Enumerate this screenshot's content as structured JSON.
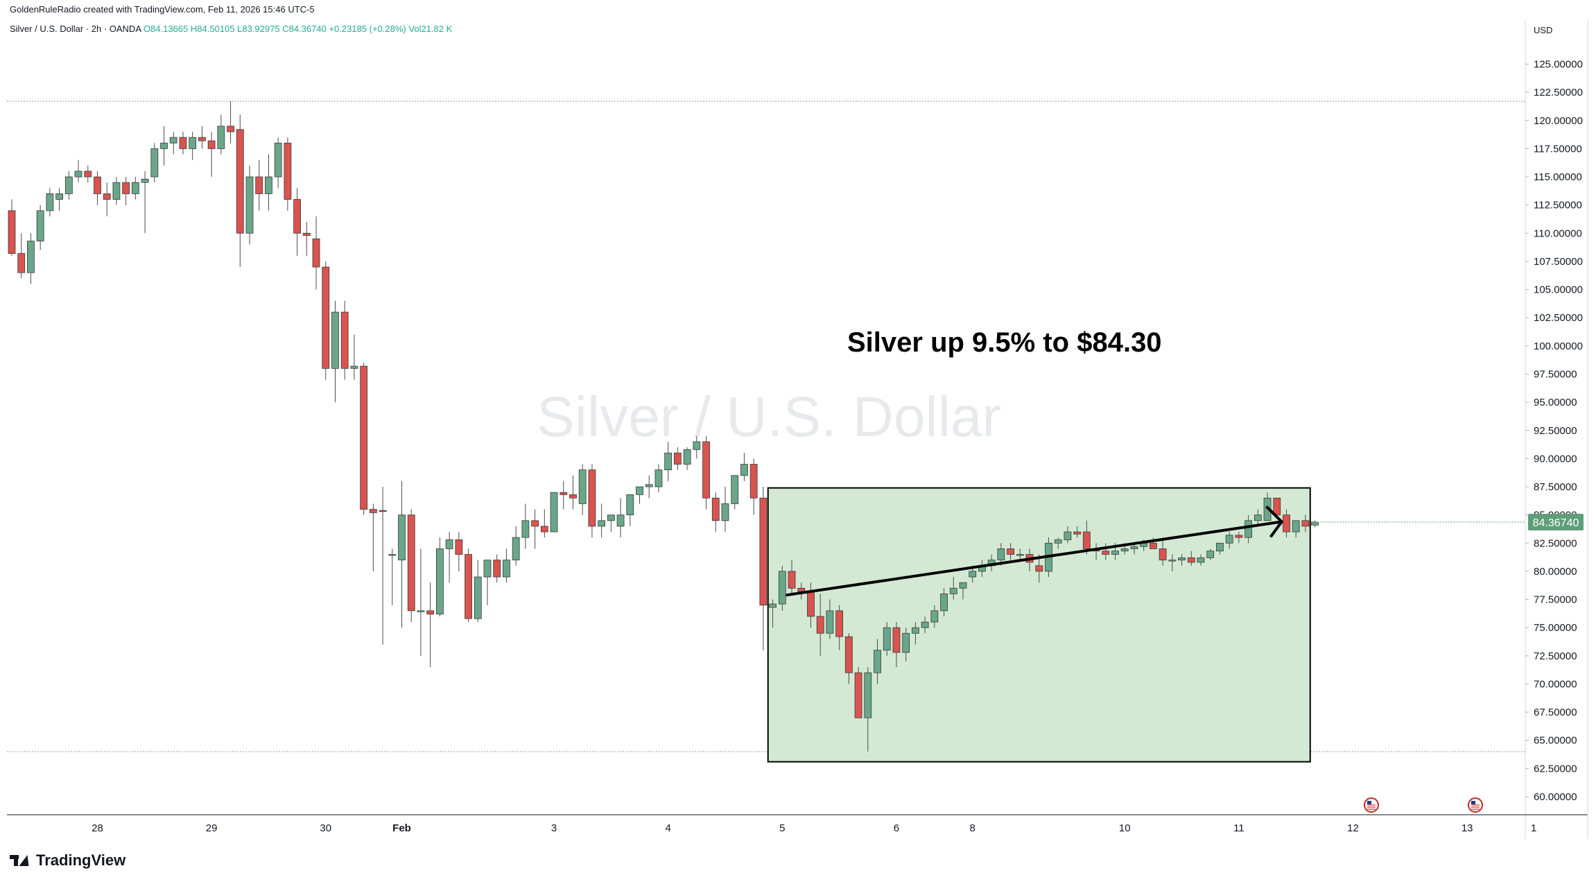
{
  "header": {
    "credit": "GoldenRuleRadio created with TradingView.com, Feb 11, 2026 15:46 UTC-5",
    "symbol": "Silver / U.S. Dollar · 2h · OANDA",
    "open": "O84.13665",
    "high": "H84.50105",
    "low": "L83.92975",
    "close": "C84.36740",
    "change": "+0.23185 (+0.28%)",
    "volume": "Vol21.82 K"
  },
  "watermark": "Silver / U.S. Dollar",
  "annotation": "Silver up 9.5% to $84.30",
  "footer": {
    "logo_text": "TradingView"
  },
  "colors": {
    "up": "#6aa68a",
    "down": "#d9534f",
    "box_fill": "#d4e9d3",
    "price_tag": "#5e9e78"
  },
  "chart_data": {
    "type": "candlestick",
    "currency": "USD",
    "ylim": [
      60,
      127
    ],
    "y_ticks": [
      "125.00000",
      "122.50000",
      "120.00000",
      "117.50000",
      "115.00000",
      "112.50000",
      "110.00000",
      "107.50000",
      "105.00000",
      "102.50000",
      "100.00000",
      "97.50000",
      "95.00000",
      "92.50000",
      "90.00000",
      "87.50000",
      "85.00000",
      "82.50000",
      "80.00000",
      "77.50000",
      "75.00000",
      "72.50000",
      "70.00000",
      "67.50000",
      "65.00000",
      "62.50000",
      "60.00000"
    ],
    "x_ticks": [
      {
        "label": "28",
        "bar": 9
      },
      {
        "label": "29",
        "bar": 21
      },
      {
        "label": "30",
        "bar": 33
      },
      {
        "label": "Feb",
        "bar": 41
      },
      {
        "label": "3",
        "bar": 57
      },
      {
        "label": "4",
        "bar": 69
      },
      {
        "label": "5",
        "bar": 81
      },
      {
        "label": "6",
        "bar": 93
      },
      {
        "label": "8",
        "bar": 101
      },
      {
        "label": "10",
        "bar": 117
      },
      {
        "label": "11",
        "bar": 129
      },
      {
        "label": "12",
        "bar": 141
      },
      {
        "label": "13",
        "bar": 153
      },
      {
        "label": "1",
        "bar": 160
      }
    ],
    "last_price": "84.36740",
    "last_price_value": 84.3674,
    "horizontal_lines": [
      121.7,
      64.0
    ],
    "highlight_box": {
      "bar_from": 79.5,
      "bar_to": 136.5,
      "y_from": 63.1,
      "y_to": 87.4
    },
    "trend_line": {
      "bar_from": 81.5,
      "y_from": 77.9,
      "bar_to": 133.5,
      "y_to": 84.4
    },
    "ohlc": [
      [
        112.0,
        113.0,
        108.0,
        108.2
      ],
      [
        108.2,
        110.0,
        106.0,
        106.5
      ],
      [
        106.5,
        110.0,
        105.5,
        109.3
      ],
      [
        109.3,
        112.5,
        108.5,
        112.0
      ],
      [
        112.0,
        114.0,
        111.5,
        113.5
      ],
      [
        113.0,
        114.0,
        112.0,
        113.5
      ],
      [
        113.5,
        115.5,
        113.0,
        115.0
      ],
      [
        115.0,
        116.5,
        114.5,
        115.5
      ],
      [
        115.5,
        116.0,
        114.5,
        115.0
      ],
      [
        115.0,
        115.5,
        112.5,
        113.5
      ],
      [
        113.5,
        114.5,
        111.5,
        113.0
      ],
      [
        113.0,
        115.0,
        112.5,
        114.5
      ],
      [
        114.5,
        115.0,
        112.5,
        113.5
      ],
      [
        113.5,
        115.0,
        113.0,
        114.5
      ],
      [
        114.5,
        115.5,
        110.0,
        114.8
      ],
      [
        115.0,
        118.0,
        114.5,
        117.5
      ],
      [
        117.5,
        119.5,
        116.0,
        118.0
      ],
      [
        118.0,
        119.0,
        117.0,
        118.5
      ],
      [
        118.5,
        119.0,
        117.0,
        117.5
      ],
      [
        117.5,
        119.0,
        116.5,
        118.5
      ],
      [
        118.5,
        119.5,
        117.5,
        118.2
      ],
      [
        118.2,
        119.0,
        115.0,
        117.5
      ],
      [
        117.5,
        120.5,
        117.0,
        119.5
      ],
      [
        119.5,
        121.7,
        118.0,
        119.0
      ],
      [
        119.2,
        120.5,
        107.0,
        110.0
      ],
      [
        110.0,
        116.0,
        109.0,
        115.0
      ],
      [
        115.0,
        116.5,
        112.0,
        113.5
      ],
      [
        113.5,
        117.0,
        112.0,
        115.0
      ],
      [
        115.0,
        118.5,
        114.0,
        118.0
      ],
      [
        118.0,
        118.5,
        112.0,
        113.0
      ],
      [
        113.0,
        114.0,
        108.0,
        110.0
      ],
      [
        110.0,
        111.0,
        108.0,
        109.8
      ],
      [
        109.5,
        111.5,
        105.0,
        107.0
      ],
      [
        107.0,
        107.5,
        97.0,
        98.0
      ],
      [
        98.0,
        104.0,
        95.0,
        103.0
      ],
      [
        103.0,
        104.0,
        97.0,
        98.0
      ],
      [
        98.0,
        101.0,
        97.0,
        98.2
      ],
      [
        98.2,
        98.5,
        85.0,
        85.5
      ],
      [
        85.5,
        86.0,
        80.0,
        85.2
      ],
      [
        85.4,
        87.5,
        73.5,
        85.3
      ],
      [
        81.5,
        82.0,
        77.0,
        81.5
      ],
      [
        81.0,
        88.0,
        75.0,
        85.0
      ],
      [
        85.0,
        85.5,
        75.5,
        76.5
      ],
      [
        76.5,
        82.0,
        72.5,
        76.5
      ],
      [
        76.5,
        79.0,
        71.5,
        76.2
      ],
      [
        76.2,
        83.0,
        76.0,
        82.0
      ],
      [
        82.0,
        83.5,
        79.0,
        82.8
      ],
      [
        82.8,
        83.5,
        80.0,
        81.5
      ],
      [
        81.5,
        82.0,
        75.5,
        75.8
      ],
      [
        75.8,
        81.0,
        75.5,
        79.5
      ],
      [
        79.5,
        81.0,
        77.0,
        81.0
      ],
      [
        81.0,
        81.5,
        79.0,
        79.5
      ],
      [
        79.5,
        82.0,
        79.0,
        81.0
      ],
      [
        81.0,
        84.0,
        80.5,
        83.0
      ],
      [
        83.0,
        86.0,
        82.0,
        84.5
      ],
      [
        84.5,
        85.5,
        82.0,
        84.0
      ],
      [
        84.0,
        85.5,
        83.0,
        83.5
      ],
      [
        83.5,
        87.0,
        83.5,
        87.0
      ],
      [
        87.0,
        88.0,
        85.5,
        86.8
      ],
      [
        86.8,
        88.5,
        85.5,
        86.5
      ],
      [
        86.0,
        89.5,
        85.0,
        89.0
      ],
      [
        89.0,
        89.5,
        83.0,
        84.0
      ],
      [
        84.0,
        86.0,
        83.0,
        84.5
      ],
      [
        84.5,
        85.0,
        83.5,
        85.0
      ],
      [
        84.0,
        86.5,
        83.0,
        85.0
      ],
      [
        85.0,
        86.5,
        84.0,
        86.8
      ],
      [
        86.8,
        87.5,
        86.0,
        87.5
      ],
      [
        87.5,
        88.5,
        86.5,
        87.7
      ],
      [
        87.5,
        89.5,
        87.0,
        89.0
      ],
      [
        89.0,
        91.5,
        88.0,
        90.5
      ],
      [
        90.5,
        91.0,
        89.0,
        89.5
      ],
      [
        89.5,
        91.0,
        89.0,
        90.8
      ],
      [
        90.8,
        92.0,
        90.0,
        91.5
      ],
      [
        91.5,
        92.0,
        85.5,
        86.5
      ],
      [
        86.5,
        87.0,
        83.5,
        84.5
      ],
      [
        84.5,
        87.5,
        83.5,
        86.0
      ],
      [
        86.0,
        88.5,
        85.5,
        88.5
      ],
      [
        88.5,
        90.5,
        88.0,
        89.5
      ],
      [
        89.5,
        90.0,
        85.0,
        86.5
      ],
      [
        86.5,
        87.5,
        73.0,
        77.0
      ],
      [
        76.8,
        77.5,
        75.0,
        77.1
      ],
      [
        77.1,
        80.5,
        76.5,
        80.0
      ],
      [
        80.0,
        81.0,
        78.0,
        78.5
      ],
      [
        78.5,
        79.0,
        77.5,
        78.2
      ],
      [
        78.2,
        79.0,
        75.0,
        76.0
      ],
      [
        76.0,
        78.0,
        72.5,
        74.5
      ],
      [
        74.5,
        77.5,
        74.0,
        76.5
      ],
      [
        76.5,
        77.0,
        73.0,
        74.2
      ],
      [
        74.2,
        74.5,
        70.0,
        71.0
      ],
      [
        71.0,
        71.5,
        67.0,
        67.0
      ],
      [
        67.0,
        71.5,
        64.0,
        71.0
      ],
      [
        71.0,
        74.0,
        70.0,
        73.0
      ],
      [
        73.0,
        75.5,
        72.5,
        75.0
      ],
      [
        75.0,
        75.5,
        71.5,
        72.8
      ],
      [
        72.8,
        75.0,
        72.0,
        74.5
      ],
      [
        74.5,
        75.5,
        73.5,
        75.0
      ],
      [
        75.0,
        76.0,
        74.5,
        75.5
      ],
      [
        75.5,
        77.0,
        75.0,
        76.5
      ],
      [
        76.5,
        78.5,
        76.0,
        78.0
      ],
      [
        78.0,
        79.5,
        77.5,
        78.5
      ],
      [
        78.5,
        79.0,
        77.5,
        79.0
      ],
      [
        79.5,
        80.5,
        79.0,
        80.0
      ],
      [
        80.0,
        81.0,
        79.5,
        80.5
      ],
      [
        80.5,
        81.5,
        80.0,
        81.0
      ],
      [
        81.0,
        82.5,
        80.5,
        82.0
      ],
      [
        82.0,
        82.5,
        81.0,
        81.5
      ],
      [
        81.5,
        82.0,
        81.0,
        81.5
      ],
      [
        81.5,
        82.0,
        80.0,
        80.8
      ],
      [
        80.5,
        81.5,
        79.0,
        80.0
      ],
      [
        80.0,
        83.0,
        79.5,
        82.5
      ],
      [
        82.5,
        83.0,
        82.0,
        82.8
      ],
      [
        82.8,
        84.0,
        82.5,
        83.5
      ],
      [
        83.5,
        84.0,
        83.0,
        83.3
      ],
      [
        83.5,
        84.5,
        81.5,
        82.0
      ],
      [
        82.0,
        82.5,
        81.0,
        81.8
      ],
      [
        81.8,
        82.5,
        81.0,
        81.5
      ],
      [
        81.5,
        82.5,
        81.0,
        81.8
      ],
      [
        81.8,
        82.5,
        81.5,
        82.0
      ],
      [
        82.0,
        82.5,
        81.5,
        82.2
      ],
      [
        82.2,
        82.8,
        81.8,
        82.5
      ],
      [
        82.5,
        83.0,
        82.0,
        82.0
      ],
      [
        82.0,
        83.0,
        80.5,
        81.0
      ],
      [
        81.0,
        81.5,
        80.0,
        81.0
      ],
      [
        81.0,
        81.5,
        80.5,
        81.2
      ],
      [
        81.2,
        81.8,
        80.5,
        80.8
      ],
      [
        80.8,
        81.5,
        80.5,
        81.2
      ],
      [
        81.2,
        82.0,
        81.0,
        81.8
      ],
      [
        81.8,
        82.5,
        81.5,
        82.5
      ],
      [
        82.5,
        83.5,
        82.0,
        83.2
      ],
      [
        83.2,
        83.5,
        82.5,
        83.0
      ],
      [
        83.0,
        85.0,
        82.5,
        84.5
      ],
      [
        84.5,
        85.5,
        84.0,
        85.0
      ],
      [
        84.5,
        87.0,
        84.5,
        86.5
      ],
      [
        86.5,
        86.5,
        85.0,
        85.0
      ],
      [
        85.0,
        85.5,
        83.0,
        83.5
      ],
      [
        83.5,
        84.5,
        83.0,
        84.5
      ],
      [
        84.5,
        85.0,
        83.5,
        84.0
      ],
      [
        84.1,
        84.5,
        83.9,
        84.37
      ]
    ]
  }
}
